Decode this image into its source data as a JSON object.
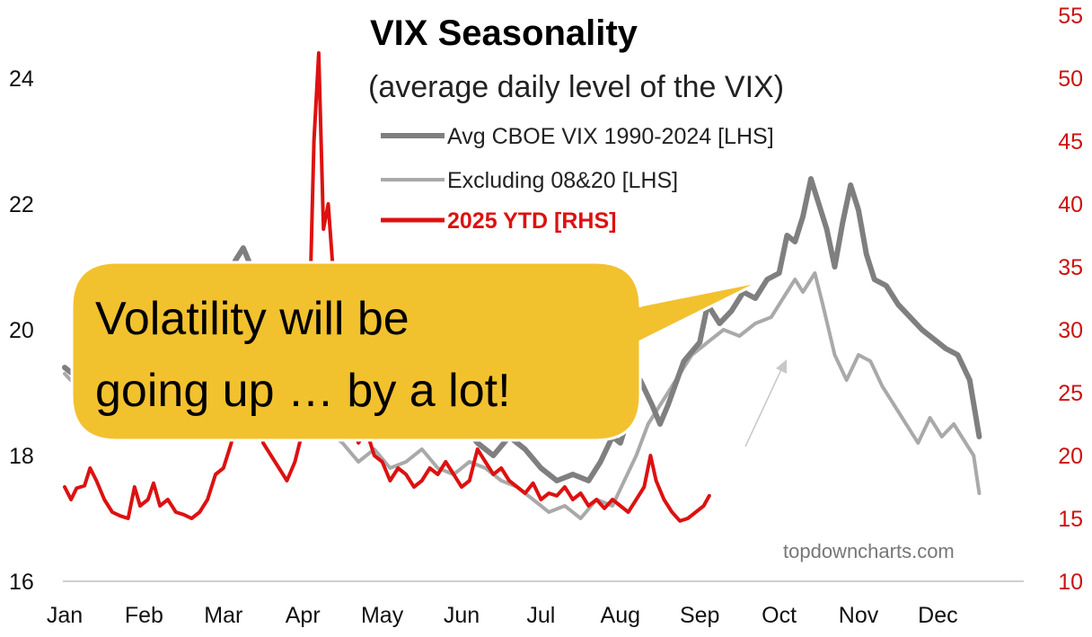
{
  "chart_data": {
    "type": "line",
    "title": "VIX Seasonality",
    "subtitle": "(average daily level of the VIX)",
    "x_categories": [
      "Jan",
      "Feb",
      "Mar",
      "Apr",
      "May",
      "Jun",
      "Jul",
      "Aug",
      "Sep",
      "Oct",
      "Nov",
      "Dec"
    ],
    "y_left": {
      "ticks": [
        16,
        18,
        20,
        22,
        24
      ],
      "range": [
        16,
        25
      ]
    },
    "y_right": {
      "ticks": [
        10,
        15,
        20,
        25,
        30,
        35,
        40,
        45,
        50,
        55
      ],
      "range": [
        10,
        55
      ]
    },
    "legend": [
      "Avg CBOE VIX 1990-2024 [LHS]",
      "Excluding 08&20 [LHS]",
      "2025 YTD [RHS]"
    ],
    "source": "topdowncharts.com",
    "annotation": {
      "lines": [
        "Volatility will be",
        "going up … by a lot!"
      ]
    },
    "series": [
      {
        "name": "Avg CBOE VIX 1990-2024 [LHS]",
        "axis": "left",
        "color": "#7f7f7f",
        "points": [
          [
            0.0,
            19.4
          ],
          [
            0.1,
            19.3
          ],
          [
            0.25,
            19.0
          ],
          [
            0.4,
            18.8
          ],
          [
            0.55,
            18.9
          ],
          [
            0.7,
            18.6
          ],
          [
            0.85,
            18.8
          ],
          [
            1.0,
            18.7
          ],
          [
            1.2,
            18.9
          ],
          [
            1.4,
            19.3
          ],
          [
            1.6,
            19.8
          ],
          [
            1.8,
            20.3
          ],
          [
            2.0,
            20.6
          ],
          [
            2.15,
            21.1
          ],
          [
            2.25,
            21.3
          ],
          [
            2.35,
            21.0
          ],
          [
            2.5,
            20.3
          ],
          [
            2.7,
            19.8
          ],
          [
            2.9,
            19.5
          ],
          [
            3.0,
            20.2
          ],
          [
            3.1,
            20.6
          ],
          [
            3.2,
            19.8
          ],
          [
            3.4,
            19.3
          ],
          [
            3.6,
            19.0
          ],
          [
            3.8,
            19.1
          ],
          [
            4.0,
            18.9
          ],
          [
            4.2,
            18.7
          ],
          [
            4.4,
            18.5
          ],
          [
            4.6,
            18.7
          ],
          [
            4.8,
            18.3
          ],
          [
            5.0,
            18.5
          ],
          [
            5.2,
            18.2
          ],
          [
            5.4,
            18.0
          ],
          [
            5.6,
            18.3
          ],
          [
            5.8,
            18.1
          ],
          [
            6.0,
            17.8
          ],
          [
            6.2,
            17.6
          ],
          [
            6.4,
            17.7
          ],
          [
            6.6,
            17.6
          ],
          [
            6.75,
            17.9
          ],
          [
            6.9,
            18.3
          ],
          [
            7.0,
            18.2
          ],
          [
            7.1,
            18.6
          ],
          [
            7.25,
            19.2
          ],
          [
            7.4,
            18.8
          ],
          [
            7.5,
            18.5
          ],
          [
            7.6,
            18.8
          ],
          [
            7.8,
            19.5
          ],
          [
            8.0,
            19.8
          ],
          [
            8.1,
            20.4
          ],
          [
            8.25,
            20.1
          ],
          [
            8.4,
            20.3
          ],
          [
            8.55,
            20.6
          ],
          [
            8.7,
            20.5
          ],
          [
            8.85,
            20.8
          ],
          [
            9.0,
            20.9
          ],
          [
            9.1,
            21.5
          ],
          [
            9.2,
            21.4
          ],
          [
            9.3,
            21.8
          ],
          [
            9.4,
            22.4
          ],
          [
            9.5,
            22.0
          ],
          [
            9.6,
            21.6
          ],
          [
            9.7,
            21.0
          ],
          [
            9.8,
            21.7
          ],
          [
            9.9,
            22.3
          ],
          [
            10.0,
            21.9
          ],
          [
            10.1,
            21.2
          ],
          [
            10.2,
            20.8
          ],
          [
            10.35,
            20.7
          ],
          [
            10.5,
            20.4
          ],
          [
            10.65,
            20.2
          ],
          [
            10.8,
            20.0
          ],
          [
            11.0,
            19.8
          ],
          [
            11.1,
            19.7
          ],
          [
            11.25,
            19.6
          ],
          [
            11.4,
            19.2
          ],
          [
            11.52,
            18.3
          ]
        ]
      },
      {
        "name": "Excluding 08&20 [LHS]",
        "axis": "left",
        "color": "#a9a9a9",
        "points": [
          [
            0.0,
            19.3
          ],
          [
            0.15,
            19.1
          ],
          [
            0.3,
            18.8
          ],
          [
            0.5,
            18.5
          ],
          [
            0.7,
            18.6
          ],
          [
            0.9,
            18.4
          ],
          [
            1.1,
            18.5
          ],
          [
            1.3,
            18.8
          ],
          [
            1.5,
            19.0
          ],
          [
            1.7,
            19.4
          ],
          [
            1.9,
            19.8
          ],
          [
            2.1,
            20.1
          ],
          [
            2.3,
            20.4
          ],
          [
            2.5,
            20.0
          ],
          [
            2.7,
            19.2
          ],
          [
            2.9,
            18.8
          ],
          [
            3.1,
            18.6
          ],
          [
            3.3,
            18.4
          ],
          [
            3.5,
            18.2
          ],
          [
            3.7,
            17.9
          ],
          [
            3.9,
            18.1
          ],
          [
            4.1,
            17.8
          ],
          [
            4.3,
            17.9
          ],
          [
            4.5,
            18.1
          ],
          [
            4.7,
            17.8
          ],
          [
            4.9,
            17.7
          ],
          [
            5.1,
            17.9
          ],
          [
            5.3,
            17.8
          ],
          [
            5.5,
            17.6
          ],
          [
            5.7,
            17.5
          ],
          [
            5.9,
            17.3
          ],
          [
            6.1,
            17.1
          ],
          [
            6.3,
            17.2
          ],
          [
            6.5,
            17.0
          ],
          [
            6.7,
            17.3
          ],
          [
            6.9,
            17.2
          ],
          [
            7.05,
            17.6
          ],
          [
            7.2,
            18.0
          ],
          [
            7.35,
            18.5
          ],
          [
            7.5,
            18.8
          ],
          [
            7.7,
            19.2
          ],
          [
            7.9,
            19.6
          ],
          [
            8.1,
            19.8
          ],
          [
            8.3,
            20.0
          ],
          [
            8.5,
            19.9
          ],
          [
            8.7,
            20.1
          ],
          [
            8.9,
            20.2
          ],
          [
            9.05,
            20.5
          ],
          [
            9.2,
            20.8
          ],
          [
            9.3,
            20.6
          ],
          [
            9.45,
            20.9
          ],
          [
            9.55,
            20.4
          ],
          [
            9.7,
            19.6
          ],
          [
            9.85,
            19.2
          ],
          [
            10.0,
            19.6
          ],
          [
            10.15,
            19.5
          ],
          [
            10.3,
            19.1
          ],
          [
            10.45,
            18.8
          ],
          [
            10.6,
            18.5
          ],
          [
            10.75,
            18.2
          ],
          [
            10.9,
            18.6
          ],
          [
            11.05,
            18.3
          ],
          [
            11.2,
            18.5
          ],
          [
            11.35,
            18.2
          ],
          [
            11.45,
            18.0
          ],
          [
            11.52,
            17.4
          ]
        ]
      },
      {
        "name": "2025 YTD [RHS]",
        "axis": "right",
        "color": "#dd1111",
        "points": [
          [
            0.0,
            17.5
          ],
          [
            0.08,
            16.5
          ],
          [
            0.15,
            17.4
          ],
          [
            0.25,
            17.6
          ],
          [
            0.32,
            19.0
          ],
          [
            0.4,
            18.0
          ],
          [
            0.5,
            16.5
          ],
          [
            0.6,
            15.5
          ],
          [
            0.7,
            15.2
          ],
          [
            0.8,
            15.0
          ],
          [
            0.88,
            17.5
          ],
          [
            0.95,
            16.0
          ],
          [
            1.05,
            16.5
          ],
          [
            1.12,
            17.8
          ],
          [
            1.2,
            16.0
          ],
          [
            1.3,
            16.5
          ],
          [
            1.4,
            15.5
          ],
          [
            1.5,
            15.3
          ],
          [
            1.6,
            15.0
          ],
          [
            1.7,
            15.5
          ],
          [
            1.8,
            16.5
          ],
          [
            1.9,
            18.5
          ],
          [
            2.0,
            19.0
          ],
          [
            2.1,
            21.0
          ],
          [
            2.2,
            24.0
          ],
          [
            2.3,
            28.0
          ],
          [
            2.4,
            25.0
          ],
          [
            2.5,
            21.0
          ],
          [
            2.6,
            20.0
          ],
          [
            2.7,
            19.0
          ],
          [
            2.8,
            18.0
          ],
          [
            2.9,
            19.5
          ],
          [
            3.0,
            22.0
          ],
          [
            3.08,
            30.0
          ],
          [
            3.14,
            45.0
          ],
          [
            3.2,
            52.0
          ],
          [
            3.26,
            38.0
          ],
          [
            3.32,
            40.0
          ],
          [
            3.4,
            33.0
          ],
          [
            3.5,
            26.0
          ],
          [
            3.6,
            23.0
          ],
          [
            3.7,
            21.0
          ],
          [
            3.8,
            22.0
          ],
          [
            3.9,
            20.0
          ],
          [
            4.0,
            19.5
          ],
          [
            4.1,
            18.0
          ],
          [
            4.2,
            19.0
          ],
          [
            4.3,
            18.5
          ],
          [
            4.4,
            17.5
          ],
          [
            4.5,
            18.0
          ],
          [
            4.6,
            19.0
          ],
          [
            4.7,
            18.5
          ],
          [
            4.8,
            19.5
          ],
          [
            4.9,
            18.5
          ],
          [
            5.0,
            17.5
          ],
          [
            5.1,
            18.0
          ],
          [
            5.2,
            20.5
          ],
          [
            5.3,
            19.5
          ],
          [
            5.4,
            18.5
          ],
          [
            5.5,
            19.0
          ],
          [
            5.6,
            18.0
          ],
          [
            5.7,
            17.5
          ],
          [
            5.8,
            17.0
          ],
          [
            5.9,
            17.8
          ],
          [
            6.0,
            16.5
          ],
          [
            6.1,
            17.0
          ],
          [
            6.2,
            16.8
          ],
          [
            6.3,
            17.5
          ],
          [
            6.4,
            16.5
          ],
          [
            6.5,
            17.0
          ],
          [
            6.6,
            16.0
          ],
          [
            6.7,
            16.5
          ],
          [
            6.8,
            15.8
          ],
          [
            6.9,
            16.5
          ],
          [
            7.0,
            16.0
          ],
          [
            7.1,
            15.5
          ],
          [
            7.2,
            16.5
          ],
          [
            7.3,
            17.5
          ],
          [
            7.38,
            20.0
          ],
          [
            7.45,
            18.0
          ],
          [
            7.55,
            16.5
          ],
          [
            7.65,
            15.5
          ],
          [
            7.75,
            14.8
          ],
          [
            7.85,
            15.0
          ],
          [
            7.95,
            15.5
          ],
          [
            8.05,
            16.0
          ],
          [
            8.12,
            16.8
          ]
        ]
      }
    ]
  }
}
